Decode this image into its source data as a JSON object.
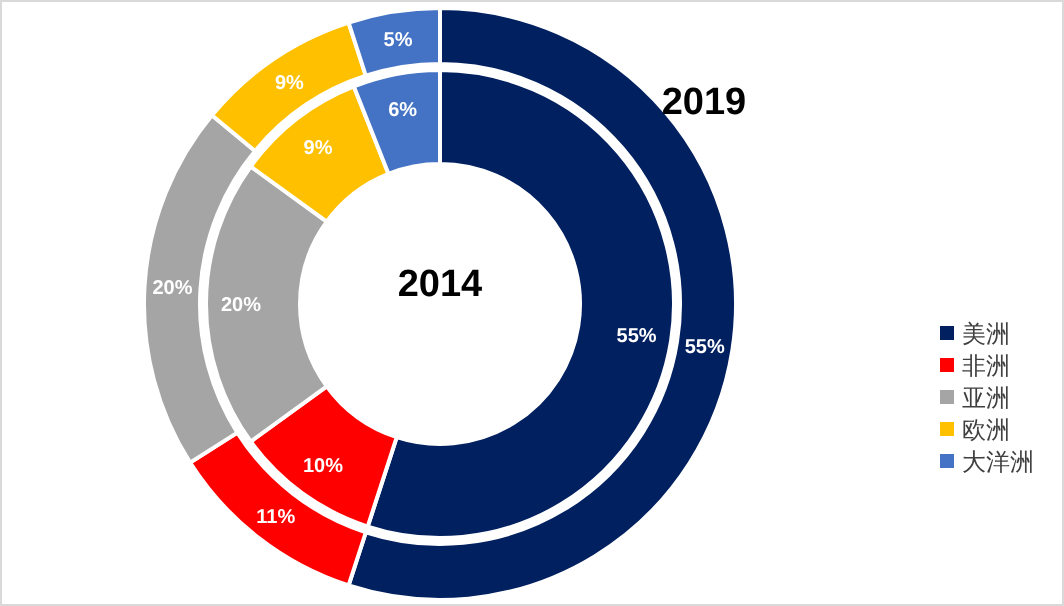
{
  "chart_data": {
    "type": "donut",
    "categories": [
      "美洲",
      "非洲",
      "亚洲",
      "欧洲",
      "大洋洲"
    ],
    "colors": [
      "#002060",
      "#ff0000",
      "#a5a5a5",
      "#ffc000",
      "#4472c4"
    ],
    "series": [
      {
        "name": "2019",
        "values": [
          55,
          11,
          20,
          9,
          5
        ],
        "value_labels": [
          "55%",
          "11%",
          "20%",
          "9%",
          "5%"
        ]
      },
      {
        "name": "2014",
        "values": [
          55,
          10,
          20,
          9,
          6
        ],
        "value_labels": [
          "55%",
          "10%",
          "20%",
          "9%",
          "6%"
        ]
      }
    ],
    "legend": "right"
  }
}
